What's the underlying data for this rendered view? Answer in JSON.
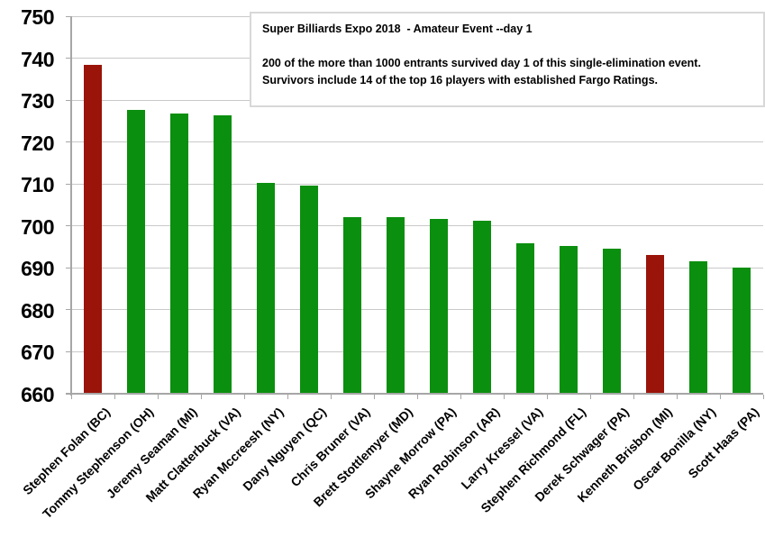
{
  "chart_data": {
    "type": "bar",
    "title_box": {
      "line1": "Super Billiards Expo 2018  - Amateur Event --day 1",
      "line2": "",
      "line3": "200 of the more than 1000 entrants survived day 1 of this single-elimination event.",
      "line4": "Survivors include 14 of the top 16 players with established Fargo Ratings."
    },
    "categories": [
      "Stephen Folan (BC)",
      "Tommy Stephenson (OH)",
      "Jeremy Seaman (MI)",
      "Matt Clatterbuck (VA)",
      "Ryan Mccreesh (NY)",
      "Dany Nguyen (QC)",
      "Chris Bruner (VA)",
      "Brett Stottlemyer (MD)",
      "Shayne Morrow (PA)",
      "Ryan Robinson (AR)",
      "Larry Kressel (VA)",
      "Stephen Richmond (FL)",
      "Derek Schwager (PA)",
      "Kenneth Brisbon (MI)",
      "Oscar Bonilla (NY)",
      "Scott Haas (PA)"
    ],
    "values": [
      738.4,
      727.7,
      726.9,
      726.4,
      710.2,
      709.6,
      702.2,
      702.0,
      701.6,
      701.3,
      695.9,
      695.2,
      694.6,
      693.1,
      691.6,
      690.1
    ],
    "bar_colors": [
      "dark_red",
      "green",
      "green",
      "green",
      "green",
      "green",
      "green",
      "green",
      "green",
      "green",
      "green",
      "green",
      "green",
      "dark_red",
      "green",
      "green"
    ],
    "palette": {
      "green": "#0a8f0e",
      "dark_red": "#9a1409"
    },
    "yticks": [
      750,
      740,
      730,
      720,
      710,
      700,
      690,
      680,
      670,
      660
    ],
    "ylim": [
      660,
      750
    ],
    "grid": true,
    "legend": "none",
    "xlabel": "",
    "ylabel": ""
  }
}
